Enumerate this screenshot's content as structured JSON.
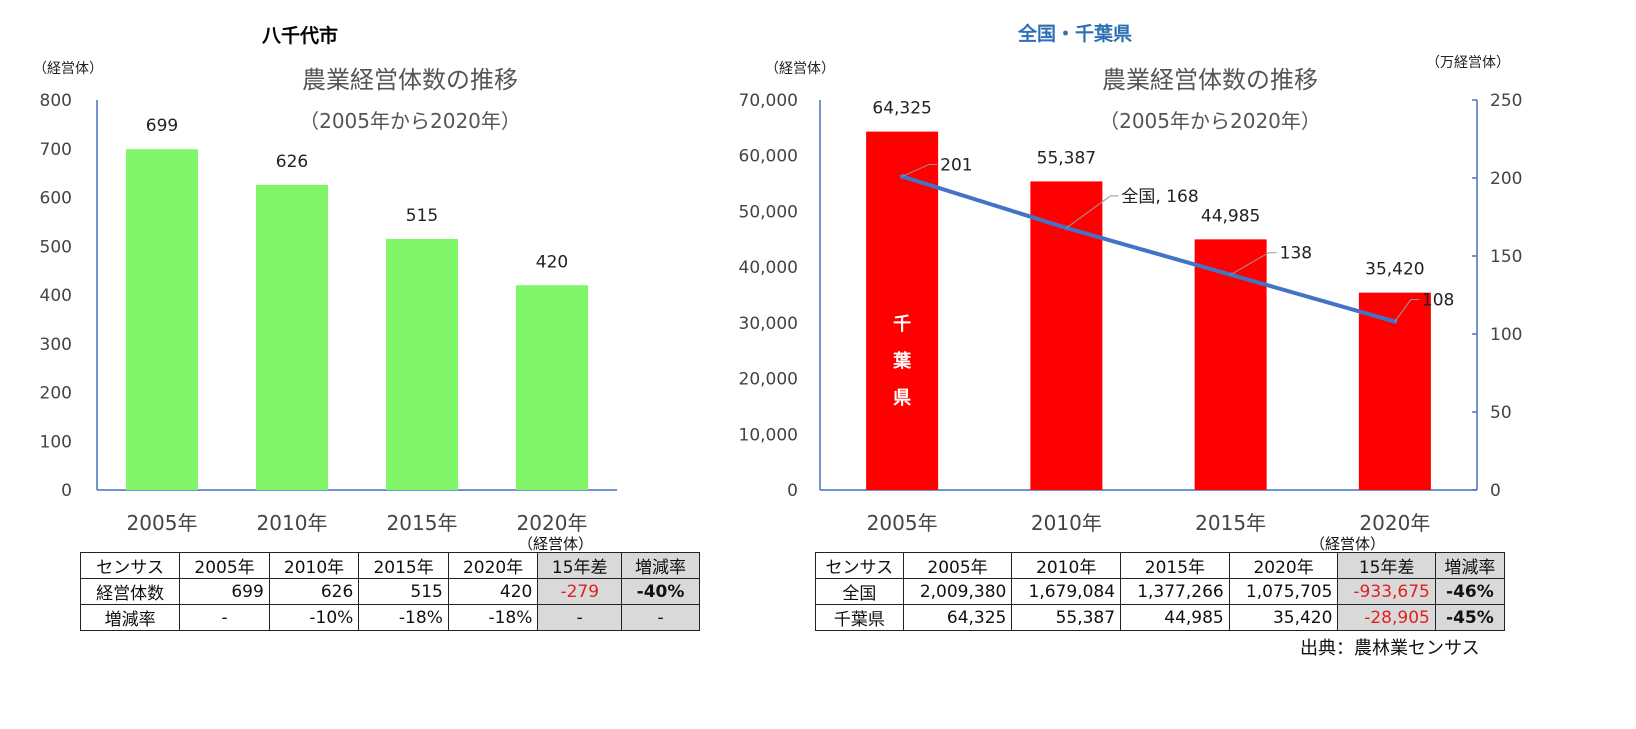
{
  "chart_data": [
    {
      "type": "bar",
      "panel_title": "八千代市",
      "title": "農業経営体数の推移",
      "subtitle": "（2005年から2020年）",
      "ylabel": "（経営体）",
      "categories": [
        "2005年",
        "2010年",
        "2015年",
        "2020年"
      ],
      "values": [
        699,
        626,
        515,
        420
      ],
      "data_labels": [
        "699",
        "626",
        "515",
        "420"
      ],
      "ylim": [
        0,
        800
      ],
      "yticks": [
        "0",
        "100",
        "200",
        "300",
        "400",
        "500",
        "600",
        "700",
        "800"
      ],
      "bar_color": "#80f56a",
      "grid": false
    },
    {
      "type": "bar+line",
      "panel_title": "全国・千葉県",
      "panel_title_color": "#2e6fb5",
      "title": "農業経営体数の推移",
      "subtitle": "（2005年から2020年）",
      "ylabel": "（経営体）",
      "y2label": "（万経営体）",
      "categories": [
        "2005年",
        "2010年",
        "2015年",
        "2020年"
      ],
      "series": [
        {
          "name": "千葉県",
          "axis": "left",
          "kind": "bar",
          "values": [
            64325,
            55387,
            44985,
            35420
          ],
          "data_labels": [
            "64,325",
            "55,387",
            "44,985",
            "35,420"
          ],
          "color": "#ff0000"
        },
        {
          "name": "全国",
          "axis": "right",
          "kind": "line",
          "values": [
            201,
            168,
            138,
            108
          ],
          "data_labels": [
            "201",
            "全国, 168",
            "138",
            "108"
          ],
          "color": "#4472c4"
        }
      ],
      "bar_inner_label": [
        "千",
        "葉",
        "県"
      ],
      "ylim": [
        0,
        70000
      ],
      "yticks": [
        "0",
        "10,000",
        "20,000",
        "30,000",
        "40,000",
        "50,000",
        "60,000",
        "70,000"
      ],
      "y2lim": [
        0,
        250
      ],
      "y2ticks": [
        "0",
        "50",
        "100",
        "150",
        "200",
        "250"
      ],
      "grid": false
    }
  ],
  "left_table": {
    "unit": "（経営体）",
    "header": [
      "センサス",
      "2005年",
      "2010年",
      "2015年",
      "2020年",
      "15年差",
      "増減率"
    ],
    "rows": [
      [
        "経営体数",
        "699",
        "626",
        "515",
        "420",
        "-279",
        "-40%"
      ],
      [
        "増減率",
        "-",
        "-10%",
        "-18%",
        "-18%",
        "-",
        "-"
      ]
    ]
  },
  "right_table": {
    "unit": "（経営体）",
    "header": [
      "センサス",
      "2005年",
      "2010年",
      "2015年",
      "2020年",
      "15年差",
      "増減率"
    ],
    "rows": [
      [
        "全国",
        "2,009,380",
        "1,679,084",
        "1,377,266",
        "1,075,705",
        "-933,675",
        "-46%"
      ],
      [
        "千葉県",
        "64,325",
        "55,387",
        "44,985",
        "35,420",
        "-28,905",
        "-45%"
      ]
    ]
  },
  "source": "出典：農林業センサス"
}
